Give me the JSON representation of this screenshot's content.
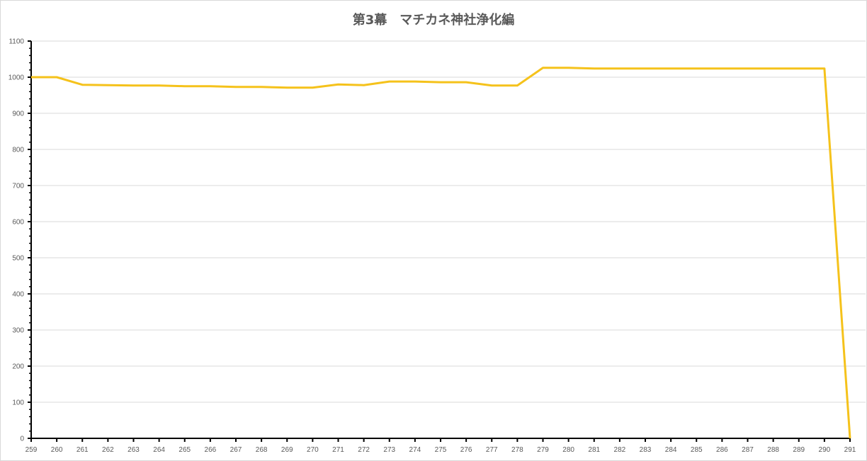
{
  "chart_data": {
    "type": "line",
    "title": "第3幕　マチカネ神社浄化編",
    "xlabel": "",
    "ylabel": "",
    "x": [
      259,
      260,
      261,
      262,
      263,
      264,
      265,
      266,
      267,
      268,
      269,
      270,
      271,
      272,
      273,
      274,
      275,
      276,
      277,
      278,
      279,
      280,
      281,
      282,
      283,
      284,
      285,
      286,
      287,
      288,
      289,
      290,
      291
    ],
    "series": [
      {
        "values": [
          1000,
          1000,
          979,
          978,
          977,
          977,
          975,
          975,
          973,
          973,
          971,
          971,
          980,
          978,
          988,
          988,
          986,
          986,
          977,
          977,
          1026,
          1026,
          1024,
          1024,
          1024,
          1024,
          1024,
          1024,
          1024,
          1024,
          1024,
          1024,
          0
        ],
        "color": "#F5C21B"
      }
    ],
    "ylim": [
      0,
      1100
    ],
    "yticks": [
      0,
      100,
      200,
      300,
      400,
      500,
      600,
      700,
      800,
      900,
      1000,
      1100
    ],
    "xlim": [
      259,
      291
    ],
    "grid": "horizontal",
    "legend": "none"
  }
}
